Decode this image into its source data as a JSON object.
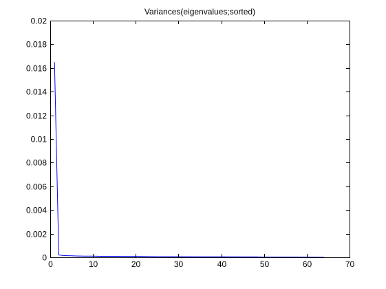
{
  "chart_data": {
    "type": "line",
    "title": "Variances(eigenvalues;sorted)",
    "xlabel": "",
    "ylabel": "",
    "xlim": [
      0,
      70
    ],
    "ylim": [
      0,
      0.02
    ],
    "xticks": [
      0,
      10,
      20,
      30,
      40,
      50,
      60,
      70
    ],
    "yticks": [
      0,
      0.002,
      0.004,
      0.006,
      0.008,
      0.01,
      0.012,
      0.014,
      0.016,
      0.018,
      0.02
    ],
    "xtick_labels": [
      "0",
      "10",
      "20",
      "30",
      "40",
      "50",
      "60",
      "70"
    ],
    "ytick_labels": [
      "0",
      "0.002",
      "0.004",
      "0.006",
      "0.008",
      "0.01",
      "0.012",
      "0.014",
      "0.016",
      "0.018",
      "0.02"
    ],
    "grid": false,
    "series": [
      {
        "color": "#0000ff",
        "x": [
          1,
          2,
          3,
          4,
          5,
          6,
          7,
          8,
          10,
          12,
          15,
          18,
          21,
          22,
          25,
          30,
          35,
          40,
          45,
          48,
          50,
          55,
          60,
          63,
          64
        ],
        "y": [
          0.0165,
          0.0002,
          0.00015,
          0.00014,
          0.00013,
          0.00012,
          0.00011,
          0.0001,
          0.0001,
          9e-05,
          9e-05,
          8e-05,
          8e-05,
          7e-05,
          6e-05,
          6e-05,
          5e-05,
          5e-05,
          4e-05,
          4e-05,
          3e-05,
          3e-05,
          2e-05,
          1e-05,
          5e-06
        ]
      }
    ]
  }
}
